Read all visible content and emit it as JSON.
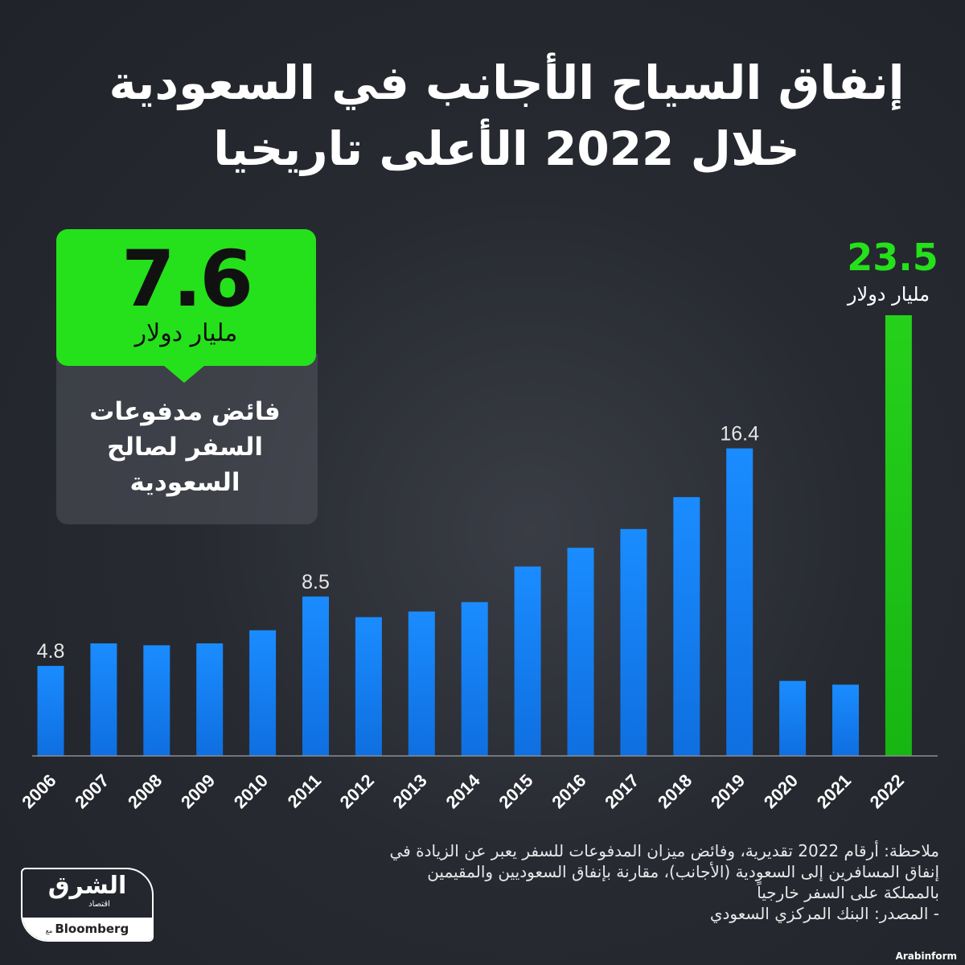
{
  "title": {
    "line1": "إنفاق السياح الأجانب في السعودية",
    "line2": "خلال 2022 الأعلى تاريخيا"
  },
  "callout": {
    "value": "7.6",
    "unit": "مليار دولار",
    "text": "فائض مدفوعات السفر لصالح السعودية"
  },
  "highlight": {
    "value": "23.5",
    "unit": "مليار دولار"
  },
  "colors": {
    "bar": "#1a8cff",
    "highlight": "#22d11a",
    "background": "#23262d"
  },
  "chart_data": {
    "type": "bar",
    "title": "إنفاق السياح الأجانب في السعودية خلال 2022 الأعلى تاريخيا",
    "categories": [
      "2006",
      "2007",
      "2008",
      "2009",
      "2010",
      "2011",
      "2012",
      "2013",
      "2014",
      "2015",
      "2016",
      "2017",
      "2018",
      "2019",
      "2020",
      "2021",
      "2022"
    ],
    "values": [
      4.8,
      6.0,
      5.9,
      6.0,
      6.7,
      8.5,
      7.4,
      7.7,
      8.2,
      10.1,
      11.1,
      12.1,
      13.8,
      16.4,
      4.0,
      3.8,
      23.5
    ],
    "data_labels": {
      "2006": "4.8",
      "2011": "8.5",
      "2019": "16.4"
    },
    "ylabel": "مليار دولار",
    "ylim": [
      0,
      24
    ],
    "grid": false
  },
  "note": {
    "line1": "ملاحظة: أرقام 2022 تقديرية، وفائض ميزان المدفوعات للسفر يعبر عن الزيادة في",
    "line2": "إنفاق المسافرين إلى السعودية (الأجانب)، مقارنة بإنفاق السعوديين والمقيمين",
    "line3": "بالمملكة على السفر خارجياً",
    "source": "- المصدر: البنك المركزي السعودي"
  },
  "logo": {
    "arabic": "الشرق",
    "sub": "اقتصاد",
    "with": "مع",
    "brand": "Bloomberg"
  },
  "credit": "Arabinform"
}
